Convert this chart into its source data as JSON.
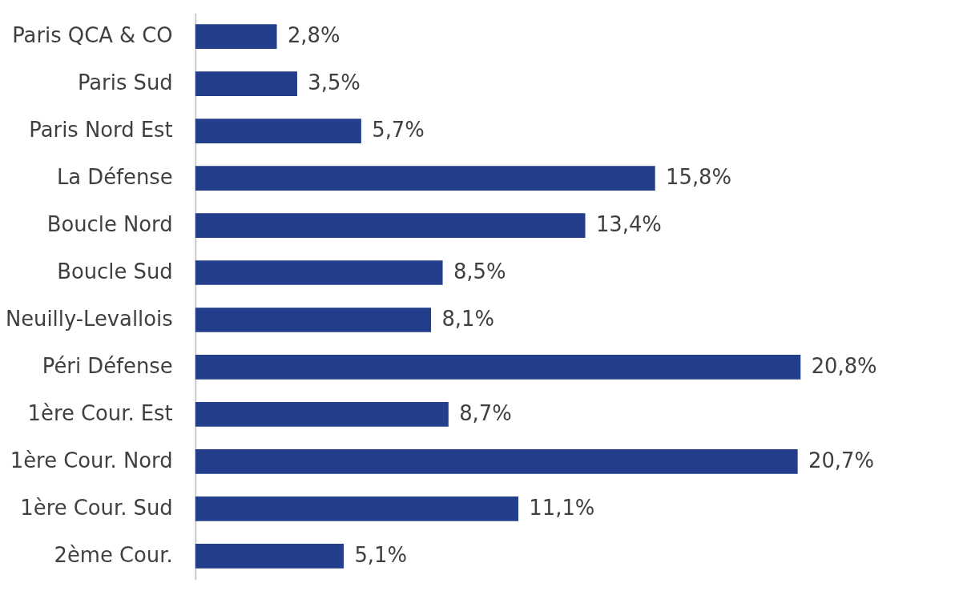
{
  "chart_data": {
    "type": "bar",
    "orientation": "horizontal",
    "categories": [
      "Paris QCA & CO",
      "Paris Sud",
      "Paris Nord Est",
      "La Défense",
      "Boucle Nord",
      "Boucle Sud",
      "Neuilly-Levallois",
      "Péri Défense",
      "1ère Cour. Est",
      "1ère Cour. Nord",
      "1ère Cour. Sud",
      "2ème Cour."
    ],
    "values": [
      2.8,
      3.5,
      5.7,
      15.8,
      13.4,
      8.5,
      8.1,
      20.8,
      8.7,
      20.7,
      11.1,
      5.1
    ],
    "value_labels": [
      "2,8%",
      "3,5%",
      "5,7%",
      "15,8%",
      "13,4%",
      "8,5%",
      "8,1%",
      "20,8%",
      "8,7%",
      "20,7%",
      "11,1%",
      "5,1%"
    ],
    "color": "#233f8c",
    "grid": false
  }
}
